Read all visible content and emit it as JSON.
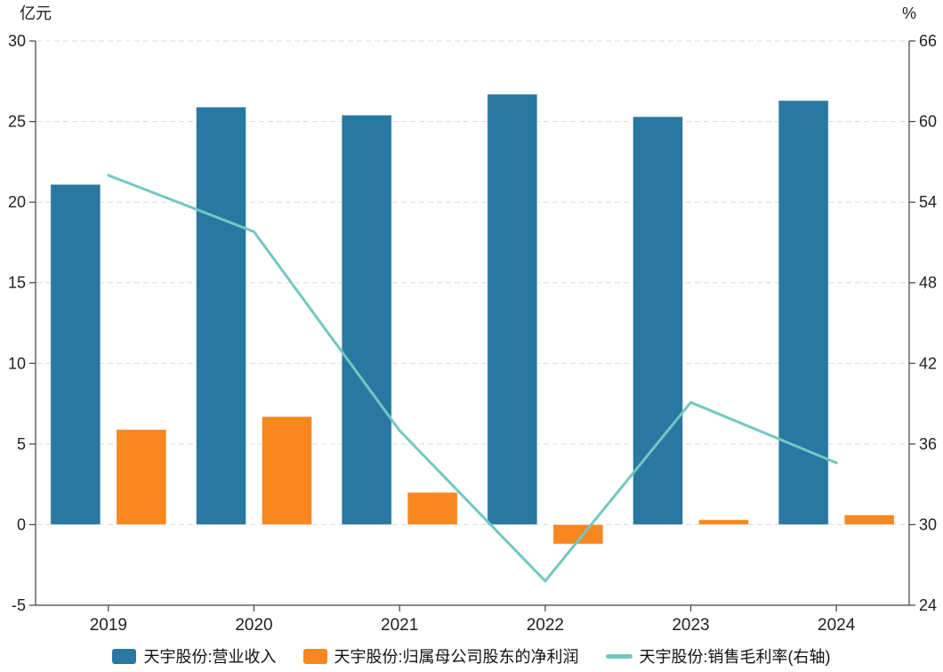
{
  "page": {
    "background": "#ffffff"
  },
  "chart_data": {
    "type": "combo",
    "title": "",
    "categories": [
      "2019",
      "2020",
      "2021",
      "2022",
      "2023",
      "2024"
    ],
    "series": [
      {
        "name": "天宇股份:营业收入",
        "type": "bar",
        "y_axis": "left",
        "color": "#2878A2",
        "values": [
          21.1,
          25.9,
          25.4,
          26.7,
          25.3,
          26.3
        ]
      },
      {
        "name": "天宇股份:归属母公司股东的净利润",
        "type": "bar",
        "y_axis": "left",
        "color": "#F8871E",
        "values": [
          5.9,
          6.7,
          2.0,
          -1.2,
          0.3,
          0.6
        ]
      },
      {
        "name": "天宇股份:销售毛利率(右轴)",
        "type": "line",
        "y_axis": "right",
        "color": "#72C8C1",
        "values": [
          56.0,
          51.8,
          37.0,
          25.8,
          39.1,
          34.6
        ]
      }
    ],
    "left_axis": {
      "label": "亿元",
      "min": -5,
      "max": 30,
      "ticks": [
        30,
        25,
        20,
        15,
        10,
        5,
        0,
        -5
      ]
    },
    "right_axis": {
      "label": "%",
      "min": 24,
      "max": 66,
      "ticks": [
        66,
        60,
        54,
        48,
        42,
        36,
        30,
        24
      ]
    },
    "grid": {
      "horizontal": true,
      "style": "dashed",
      "color": "#DBDBDB"
    },
    "axis_color": "#404040",
    "text_color": "#222222",
    "legend_position": "bottom"
  }
}
